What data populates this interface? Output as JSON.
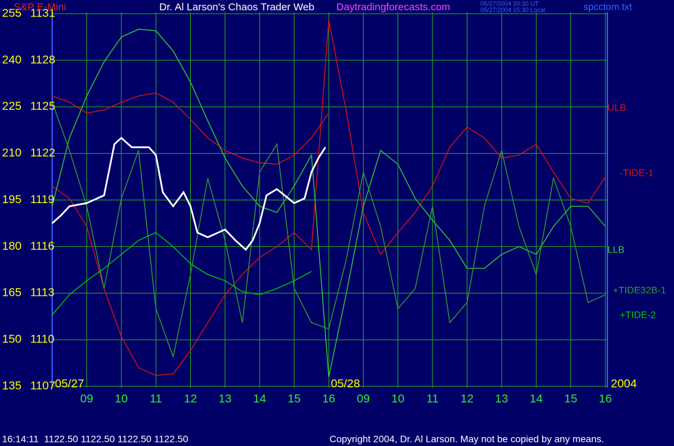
{
  "chart_data": {
    "type": "line",
    "instrument": "S&P E-Mini",
    "title": "Dr. Al Larson's Chaos Trader Web",
    "website": "Daytradingforecasts.com",
    "timestamps": [
      "05/27/2004 20:30 UT",
      "05/27/2004 15:30 Local"
    ],
    "file": "spcctom.txt",
    "date_labels": [
      "05/27",
      "05/28",
      "2004"
    ],
    "status": "16:14:11  1122.50 1122.50 1122.50 1122.50",
    "copyright": "Copyright 2004, Dr. Al Larson. May not be copied by any means.",
    "grid": true,
    "grid_color": "#22aa22",
    "xlim": [
      0,
      16
    ],
    "xticks": [
      {
        "value": 1,
        "label": "09"
      },
      {
        "value": 2,
        "label": "10"
      },
      {
        "value": 3,
        "label": "11"
      },
      {
        "value": 4,
        "label": "12"
      },
      {
        "value": 5,
        "label": "13"
      },
      {
        "value": 6,
        "label": "14"
      },
      {
        "value": 7,
        "label": "15"
      },
      {
        "value": 8,
        "label": "16"
      },
      {
        "value": 9,
        "label": "09"
      },
      {
        "value": 10,
        "label": "10"
      },
      {
        "value": 11,
        "label": "11"
      },
      {
        "value": 12,
        "label": "12"
      },
      {
        "value": 13,
        "label": "13"
      },
      {
        "value": 14,
        "label": "14"
      },
      {
        "value": 15,
        "label": "15"
      },
      {
        "value": 16,
        "label": "16"
      }
    ],
    "ylim": [
      1107,
      1131
    ],
    "yticks": [
      1107,
      1110,
      1113,
      1116,
      1119,
      1122,
      1125,
      1128,
      1131
    ],
    "y2lim": [
      135,
      255
    ],
    "y2ticks": [
      135,
      150,
      165,
      180,
      195,
      210,
      225,
      240,
      255
    ],
    "x": [
      0,
      0.5,
      1,
      1.5,
      2,
      2.5,
      3,
      3.5,
      4,
      4.5,
      5,
      5.5,
      6,
      6.5,
      7,
      7.5,
      8,
      8.5,
      9,
      9.5,
      10,
      10.5,
      11,
      11.5,
      12,
      12.5,
      13,
      13.5,
      14,
      14.5,
      15,
      15.5,
      16
    ],
    "series": [
      {
        "name": "ULB",
        "color": "#dd1111",
        "values": [
          1125.7,
          1125.3,
          1124.6,
          1124.8,
          1125.3,
          1125.7,
          1125.9,
          1125.3,
          1124.2,
          1123.0,
          1122.2,
          1121.7,
          1121.4,
          1121.3,
          1121.9,
          1123.0,
          1124.6,
          null,
          null,
          null,
          null,
          null,
          null,
          null,
          null,
          null,
          null,
          null,
          null,
          null,
          null,
          null,
          null
        ]
      },
      {
        "name": "-TIDE-1",
        "color": "#dd1111",
        "values": [
          1119.9,
          1119.1,
          1117.3,
          1113.3,
          1110.2,
          1108.2,
          1107.7,
          1107.8,
          1109.3,
          1111.1,
          1112.9,
          1114.2,
          1115.3,
          1116.0,
          1116.9,
          1115.8,
          1130.6,
          1124.8,
          1118.2,
          1115.5,
          1116.9,
          1118.2,
          1119.9,
          1122.4,
          1123.7,
          1123.0,
          1121.7,
          1121.9,
          1122.6,
          1120.8,
          1119.1,
          1118.8,
          1120.5
        ]
      },
      {
        "name": "LLB",
        "color": "#33cc33",
        "values": [
          1118.6,
          1123.0,
          1125.7,
          1127.9,
          1129.5,
          1130.0,
          1129.9,
          1128.6,
          1126.6,
          1124.1,
          1121.7,
          1119.9,
          1118.6,
          1118.2,
          1119.9,
          1121.9,
          1107.6,
          1112.9,
          1118.6,
          1122.2,
          1121.3,
          1119.1,
          1117.7,
          1116.4,
          1114.6,
          1114.6,
          1115.5,
          1116.0,
          1115.5,
          1117.3,
          1118.6,
          1118.6,
          1117.3
        ]
      },
      {
        "name": "+TIDE32B-1",
        "color": "#339933",
        "values": [
          1125.3,
          1122.2,
          1118.6,
          1113.3,
          1119.1,
          1122.2,
          1112.0,
          1108.9,
          1114.2,
          1120.4,
          1116.4,
          1111.1,
          1120.8,
          1122.6,
          1113.3,
          1111.1,
          1110.7,
          1115.1,
          1120.8,
          1117.3,
          1112.0,
          1113.3,
          1118.6,
          1111.1,
          1112.4,
          1118.6,
          1122.2,
          1117.3,
          1114.2,
          1120.4,
          1117.3,
          1112.4,
          1112.9
        ]
      },
      {
        "name": "+TIDE-2",
        "color": "#00cc00",
        "values": [
          1111.6,
          1112.9,
          1113.8,
          1114.6,
          1115.5,
          1116.4,
          1116.9,
          1116.0,
          1114.9,
          1114.2,
          1113.8,
          1113.1,
          1112.9,
          1113.3,
          1113.8,
          1114.4,
          null,
          null,
          null,
          null,
          null,
          null,
          null,
          null,
          null,
          null,
          null,
          null,
          null,
          null,
          null,
          null,
          null
        ]
      },
      {
        "color": "#ffffff",
        "x": [
          0,
          0.25,
          0.5,
          1,
          1.5,
          1.8,
          2,
          2.3,
          2.5,
          2.8,
          3,
          3.2,
          3.5,
          3.8,
          4,
          4.2,
          4.5,
          5,
          5.3,
          5.6,
          5.8,
          6,
          6.2,
          6.5,
          7,
          7.3,
          7.5,
          7.7,
          7.9
        ],
        "values": [
          1117.5,
          1118.0,
          1118.6,
          1118.8,
          1119.3,
          1122.6,
          1123.0,
          1122.4,
          1122.4,
          1122.4,
          1121.9,
          1119.5,
          1118.6,
          1119.5,
          1118.6,
          1116.9,
          1116.6,
          1117.1,
          1116.4,
          1115.8,
          1116.4,
          1117.5,
          1119.3,
          1119.7,
          1118.8,
          1119.1,
          1120.8,
          1121.7,
          1122.4
        ]
      }
    ]
  }
}
